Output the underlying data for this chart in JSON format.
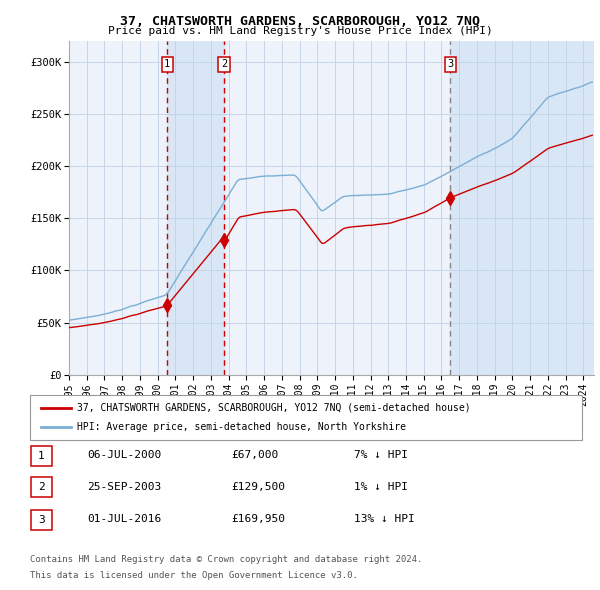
{
  "title": "37, CHATSWORTH GARDENS, SCARBOROUGH, YO12 7NQ",
  "subtitle": "Price paid vs. HM Land Registry's House Price Index (HPI)",
  "legend_house": "37, CHATSWORTH GARDENS, SCARBOROUGH, YO12 7NQ (semi-detached house)",
  "legend_hpi": "HPI: Average price, semi-detached house, North Yorkshire",
  "footer1": "Contains HM Land Registry data © Crown copyright and database right 2024.",
  "footer2": "This data is licensed under the Open Government Licence v3.0.",
  "transactions": [
    {
      "label": "1",
      "date": "06-JUL-2000",
      "price": 67000,
      "price_fmt": "£67,000",
      "note": "7% ↓ HPI",
      "year": 2000.542
    },
    {
      "label": "2",
      "date": "25-SEP-2003",
      "price": 129500,
      "price_fmt": "£129,500",
      "note": "1% ↓ HPI",
      "year": 2003.75
    },
    {
      "label": "3",
      "date": "01-JUL-2016",
      "price": 169950,
      "price_fmt": "£169,950",
      "note": "13% ↓ HPI",
      "year": 2016.5
    }
  ],
  "house_color": "#cc0000",
  "hpi_color": "#7bafd4",
  "background_color": "#edf2fb",
  "ylim": [
    0,
    320000
  ],
  "x_start_year": 1995,
  "x_end_year": 2024,
  "grid_color": "#c5d5e8",
  "shade_color": "#d8e6f5",
  "vline_color_12": "#cc0000",
  "vline_color_3": "#888888"
}
